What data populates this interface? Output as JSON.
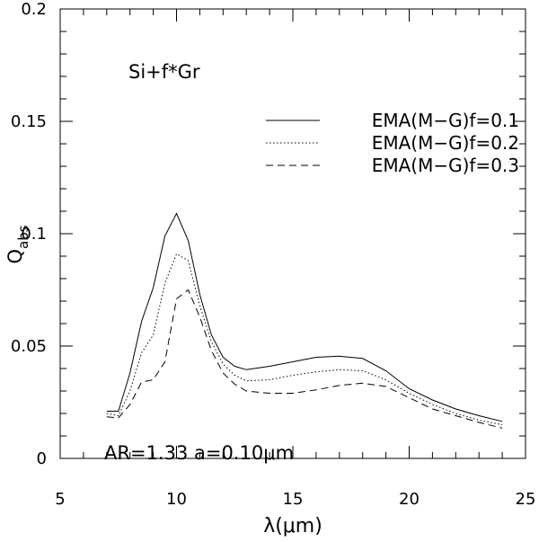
{
  "chart_data": {
    "type": "line",
    "xlabel": "λ(μm)",
    "ylabel_main": "Q",
    "ylabel_sub": "abs",
    "xlim": [
      5,
      25
    ],
    "ylim": [
      0,
      0.2
    ],
    "x_ticks": [
      "5",
      "10",
      "15",
      "20",
      "25"
    ],
    "y_ticks": [
      "0",
      "0.05",
      "0.1",
      "0.15",
      "0.2"
    ],
    "grid": false,
    "legend_position": "top-right",
    "annotations": {
      "composition": "Si+f*Gr",
      "params": "AR=1.33  a=0.10μm"
    },
    "series": [
      {
        "name": "EMA(M−G)f=0.1",
        "style": "solid",
        "x": [
          7.0,
          7.5,
          8.0,
          8.5,
          9.0,
          9.5,
          10.0,
          10.5,
          11.0,
          11.5,
          12.0,
          12.5,
          13.0,
          14.0,
          15.0,
          16.0,
          17.0,
          18.0,
          19.0,
          20.0,
          21.0,
          22.0,
          23.0,
          24.0
        ],
        "values": [
          0.021,
          0.021,
          0.038,
          0.061,
          0.076,
          0.099,
          0.109,
          0.097,
          0.073,
          0.055,
          0.045,
          0.041,
          0.0395,
          0.041,
          0.043,
          0.045,
          0.0455,
          0.0445,
          0.039,
          0.031,
          0.026,
          0.022,
          0.019,
          0.0165
        ]
      },
      {
        "name": "EMA(M−G)f=0.2",
        "style": "dotted",
        "x": [
          7.0,
          7.5,
          8.0,
          8.5,
          9.0,
          9.5,
          10.0,
          10.5,
          11.0,
          11.5,
          12.0,
          12.5,
          13.0,
          14.0,
          15.0,
          16.0,
          17.0,
          18.0,
          19.0,
          20.0,
          21.0,
          22.0,
          23.0,
          24.0
        ],
        "values": [
          0.02,
          0.019,
          0.03,
          0.047,
          0.055,
          0.078,
          0.091,
          0.088,
          0.068,
          0.052,
          0.042,
          0.037,
          0.0345,
          0.035,
          0.037,
          0.0385,
          0.0395,
          0.039,
          0.035,
          0.029,
          0.024,
          0.02,
          0.017,
          0.015
        ]
      },
      {
        "name": "EMA(M−G)f=0.3",
        "style": "dashed",
        "x": [
          7.0,
          7.5,
          8.0,
          8.5,
          9.0,
          9.5,
          10.0,
          10.5,
          11.0,
          11.5,
          12.0,
          12.5,
          13.0,
          14.0,
          15.0,
          16.0,
          17.0,
          18.0,
          19.0,
          20.0,
          21.0,
          22.0,
          23.0,
          24.0
        ],
        "values": [
          0.0185,
          0.018,
          0.024,
          0.034,
          0.035,
          0.043,
          0.071,
          0.075,
          0.063,
          0.048,
          0.038,
          0.033,
          0.03,
          0.029,
          0.029,
          0.0305,
          0.0325,
          0.0335,
          0.032,
          0.027,
          0.022,
          0.019,
          0.016,
          0.0135
        ]
      }
    ]
  }
}
